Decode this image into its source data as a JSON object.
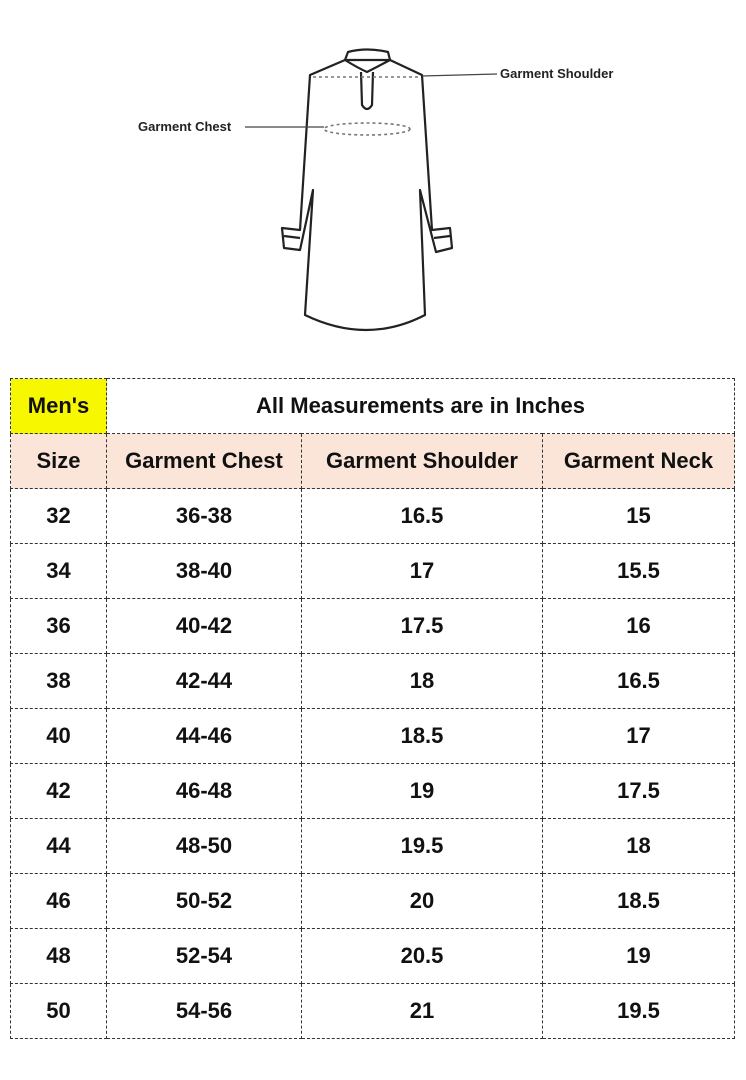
{
  "figure": {
    "shoulder_label": "Garment Shoulder",
    "chest_label": "Garment Chest"
  },
  "table": {
    "gender_label": "Men's",
    "units_note": "All Measurements are in Inches",
    "columns": [
      "Size",
      "Garment Chest",
      "Garment Shoulder",
      "Garment Neck"
    ],
    "rows": [
      [
        "32",
        "36-38",
        "16.5",
        "15"
      ],
      [
        "34",
        "38-40",
        "17",
        "15.5"
      ],
      [
        "36",
        "40-42",
        "17.5",
        "16"
      ],
      [
        "38",
        "42-44",
        "18",
        "16.5"
      ],
      [
        "40",
        "44-46",
        "18.5",
        "17"
      ],
      [
        "42",
        "46-48",
        "19",
        "17.5"
      ],
      [
        "44",
        "48-50",
        "19.5",
        "18"
      ],
      [
        "46",
        "50-52",
        "20",
        "18.5"
      ],
      [
        "48",
        "52-54",
        "20.5",
        "19"
      ],
      [
        "50",
        "54-56",
        "21",
        "19.5"
      ]
    ],
    "colors": {
      "gender_cell": "#f7f700",
      "header_row": "#fbe4d8"
    }
  }
}
